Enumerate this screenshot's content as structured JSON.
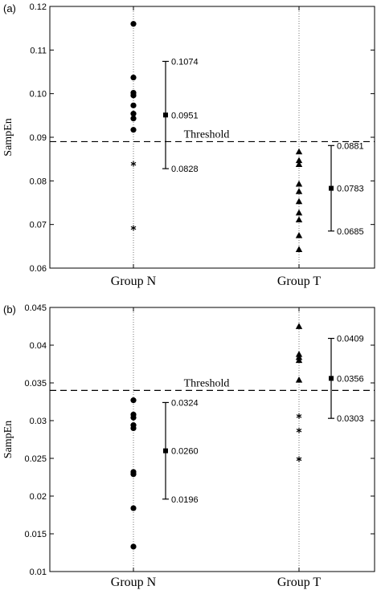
{
  "chart_data": [
    {
      "type": "scatter",
      "panel_label": "(a)",
      "ylabel": "SampEn",
      "categories": [
        "Group N",
        "Group T"
      ],
      "ylim": [
        0.06,
        0.12
      ],
      "yticks": [
        "0.06",
        "0.07",
        "0.08",
        "0.09",
        "0.10",
        "0.11",
        "0.12"
      ],
      "threshold": {
        "label": "Threshold",
        "value": 0.089
      },
      "points": [
        {
          "category": "Group N",
          "value": 0.116,
          "marker": "circle"
        },
        {
          "category": "Group N",
          "value": 0.1037,
          "marker": "circle"
        },
        {
          "category": "Group N",
          "value": 0.1002,
          "marker": "circle"
        },
        {
          "category": "Group N",
          "value": 0.0996,
          "marker": "circle"
        },
        {
          "category": "Group N",
          "value": 0.0973,
          "marker": "circle"
        },
        {
          "category": "Group N",
          "value": 0.0954,
          "marker": "circle"
        },
        {
          "category": "Group N",
          "value": 0.0943,
          "marker": "circle"
        },
        {
          "category": "Group N",
          "value": 0.0917,
          "marker": "circle"
        },
        {
          "category": "Group N",
          "value": 0.0839,
          "marker": "star"
        },
        {
          "category": "Group N",
          "value": 0.0692,
          "marker": "star"
        },
        {
          "category": "Group T",
          "value": 0.0867,
          "marker": "triangle"
        },
        {
          "category": "Group T",
          "value": 0.0847,
          "marker": "triangle"
        },
        {
          "category": "Group T",
          "value": 0.0838,
          "marker": "triangle"
        },
        {
          "category": "Group T",
          "value": 0.0793,
          "marker": "triangle"
        },
        {
          "category": "Group T",
          "value": 0.0776,
          "marker": "triangle"
        },
        {
          "category": "Group T",
          "value": 0.0753,
          "marker": "triangle"
        },
        {
          "category": "Group T",
          "value": 0.0727,
          "marker": "triangle"
        },
        {
          "category": "Group T",
          "value": 0.0711,
          "marker": "triangle"
        },
        {
          "category": "Group T",
          "value": 0.0675,
          "marker": "triangle"
        },
        {
          "category": "Group T",
          "value": 0.0643,
          "marker": "triangle"
        }
      ],
      "summaries": [
        {
          "category": "Group N",
          "upper": 0.1074,
          "mean": 0.0951,
          "lower": 0.0828,
          "labels": {
            "upper": "0.1074",
            "mean": "0.0951",
            "lower": "0.0828"
          }
        },
        {
          "category": "Group T",
          "upper": 0.0881,
          "mean": 0.0783,
          "lower": 0.0685,
          "labels": {
            "upper": "0.0881",
            "mean": "0.0783",
            "lower": "0.0685"
          }
        }
      ],
      "grid": "dotted vertical lines at categories"
    },
    {
      "type": "scatter",
      "panel_label": "(b)",
      "ylabel": "SampEn",
      "categories": [
        "Group N",
        "Group T"
      ],
      "ylim": [
        0.01,
        0.045
      ],
      "yticks": [
        "0.01",
        "0.015",
        "0.02",
        "0.025",
        "0.03",
        "0.035",
        "0.04",
        "0.045"
      ],
      "threshold": {
        "label": "Threshold",
        "value": 0.034
      },
      "points": [
        {
          "category": "Group N",
          "value": 0.0327,
          "marker": "circle"
        },
        {
          "category": "Group N",
          "value": 0.0308,
          "marker": "circle"
        },
        {
          "category": "Group N",
          "value": 0.0304,
          "marker": "circle"
        },
        {
          "category": "Group N",
          "value": 0.0294,
          "marker": "circle"
        },
        {
          "category": "Group N",
          "value": 0.029,
          "marker": "circle"
        },
        {
          "category": "Group N",
          "value": 0.0232,
          "marker": "circle"
        },
        {
          "category": "Group N",
          "value": 0.0229,
          "marker": "circle"
        },
        {
          "category": "Group N",
          "value": 0.0184,
          "marker": "circle"
        },
        {
          "category": "Group N",
          "value": 0.0133,
          "marker": "circle"
        },
        {
          "category": "Group T",
          "value": 0.0425,
          "marker": "triangle"
        },
        {
          "category": "Group T",
          "value": 0.0388,
          "marker": "triangle"
        },
        {
          "category": "Group T",
          "value": 0.0384,
          "marker": "triangle"
        },
        {
          "category": "Group T",
          "value": 0.038,
          "marker": "triangle"
        },
        {
          "category": "Group T",
          "value": 0.0354,
          "marker": "triangle"
        },
        {
          "category": "Group T",
          "value": 0.0306,
          "marker": "star"
        },
        {
          "category": "Group T",
          "value": 0.0287,
          "marker": "star"
        },
        {
          "category": "Group T",
          "value": 0.0249,
          "marker": "star"
        }
      ],
      "summaries": [
        {
          "category": "Group N",
          "upper": 0.0324,
          "mean": 0.026,
          "lower": 0.0196,
          "labels": {
            "upper": "0.0324",
            "mean": "0.0260",
            "lower": "0.0196"
          }
        },
        {
          "category": "Group T",
          "upper": 0.0409,
          "mean": 0.0356,
          "lower": 0.0303,
          "labels": {
            "upper": "0.0409",
            "mean": "0.0356",
            "lower": "0.0303"
          }
        }
      ],
      "grid": "dotted vertical lines at categories"
    }
  ]
}
